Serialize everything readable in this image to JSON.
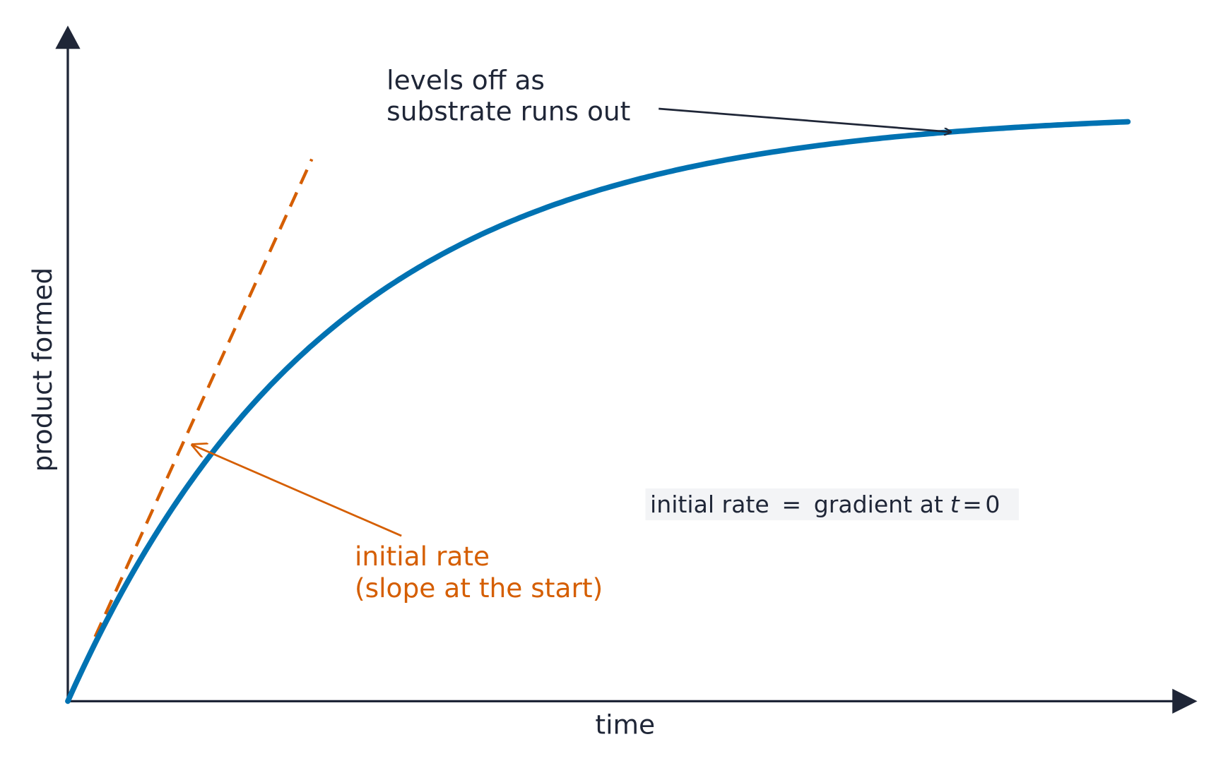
{
  "axes": {
    "x_label": "time",
    "y_label": "product formed"
  },
  "annotations": {
    "plateau": [
      "levels off as",
      "substrate runs out"
    ],
    "initial": [
      "initial rate",
      "(slope at the start)"
    ]
  },
  "formula": {
    "lhs": "initial rate",
    "eq": "=",
    "rhs": "gradient at",
    "var": "t",
    "eq2": "=",
    "val": "0"
  }
}
